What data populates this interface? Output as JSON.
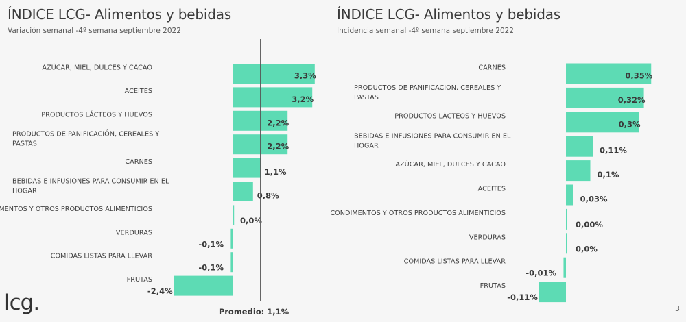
{
  "logo": "lcg.",
  "page_number": "3",
  "colors": {
    "bar": "#5ddbb4",
    "average_line": "#555555"
  },
  "chart_data": [
    {
      "type": "bar",
      "orientation": "horizontal",
      "title": "ÍNDICE LCG- Alimentos y bebidas",
      "subtitle": "Variación semanal -4º semana septiembre 2022",
      "categories": [
        "AZÚCAR, MIEL, DULCES Y CACAO",
        "ACEITES",
        "PRODUCTOS LÁCTEOS Y HUEVOS",
        "PRODUCTOS DE PANIFICACIÓN, CEREALES Y PASTAS",
        "CARNES",
        "BEBIDAS E INFUSIONES PARA CONSUMIR EN EL HOGAR",
        "CONDIMENTOS Y OTROS PRODUCTOS ALIMENTICIOS",
        "VERDURAS",
        "COMIDAS LISTAS PARA LLEVAR",
        "FRUTAS"
      ],
      "values": [
        3.3,
        3.2,
        2.2,
        2.2,
        1.1,
        0.8,
        0.0,
        -0.1,
        -0.1,
        -2.4
      ],
      "value_labels": [
        "3,3%",
        "3,2%",
        "2,2%",
        "2,2%",
        "1,1%",
        "0,8%",
        "0,0%",
        "-0,1%",
        "-0,1%",
        "-2,4%"
      ],
      "reference_line": {
        "value": 1.1,
        "label": "Promedio: 1,1%"
      },
      "grid": false,
      "legend": "none"
    },
    {
      "type": "bar",
      "orientation": "horizontal",
      "title": "ÍNDICE LCG- Alimentos y bebidas",
      "subtitle": "Incidencia semanal -4º semana septiembre 2022",
      "categories": [
        "CARNES",
        "PRODUCTOS DE PANIFICACIÓN, CEREALES Y PASTAS",
        "PRODUCTOS LÁCTEOS Y HUEVOS",
        "BEBIDAS E INFUSIONES PARA CONSUMIR EN EL HOGAR",
        "AZÚCAR, MIEL, DULCES Y CACAO",
        "ACEITES",
        "CONDIMENTOS Y OTROS PRODUCTOS ALIMENTICIOS",
        "VERDURAS",
        "COMIDAS LISTAS PARA LLEVAR",
        "FRUTAS"
      ],
      "values": [
        0.35,
        0.32,
        0.3,
        0.11,
        0.1,
        0.03,
        0.0,
        0.0,
        -0.01,
        -0.11
      ],
      "value_labels": [
        "0,35%",
        "0,32%",
        "0,3%",
        "0,11%",
        "0,1%",
        "0,03%",
        "0,00%",
        "0,0%",
        "-0,01%",
        "-0,11%"
      ],
      "grid": false,
      "legend": "none"
    }
  ]
}
